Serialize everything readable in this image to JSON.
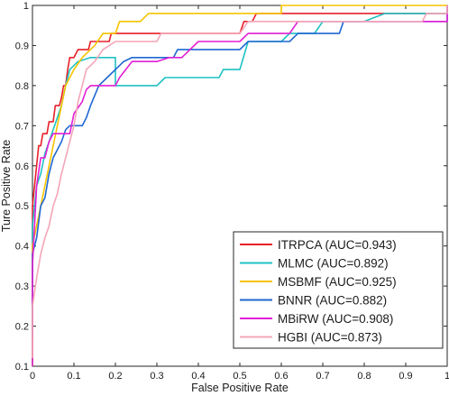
{
  "chart_data": {
    "type": "line",
    "title": "",
    "xlabel": "False Positive Rate",
    "ylabel": "Ture Positive Rate",
    "xlim": [
      0,
      1
    ],
    "ylim": [
      0.1,
      1
    ],
    "grid": false,
    "legend_position": "bottom-right",
    "x_ticks": [
      "0",
      "0.1",
      "0.2",
      "0.3",
      "0.4",
      "0.5",
      "0.6",
      "0.7",
      "0.8",
      "0.9",
      "1"
    ],
    "y_ticks": [
      "0.1",
      "0.2",
      "0.3",
      "0.4",
      "0.5",
      "0.6",
      "0.7",
      "0.8",
      "0.9",
      "1"
    ],
    "series": [
      {
        "name": "ITRPCA (AUC=0.943)",
        "color": "#e8202a",
        "points": [
          [
            0,
            0.1
          ],
          [
            0,
            0.5
          ],
          [
            0.005,
            0.55
          ],
          [
            0.01,
            0.6
          ],
          [
            0.015,
            0.65
          ],
          [
            0.02,
            0.65
          ],
          [
            0.025,
            0.68
          ],
          [
            0.035,
            0.68
          ],
          [
            0.04,
            0.71
          ],
          [
            0.05,
            0.71
          ],
          [
            0.055,
            0.75
          ],
          [
            0.065,
            0.75
          ],
          [
            0.07,
            0.77
          ],
          [
            0.075,
            0.8
          ],
          [
            0.08,
            0.8
          ],
          [
            0.085,
            0.84
          ],
          [
            0.09,
            0.87
          ],
          [
            0.1,
            0.87
          ],
          [
            0.11,
            0.89
          ],
          [
            0.135,
            0.89
          ],
          [
            0.14,
            0.91
          ],
          [
            0.185,
            0.91
          ],
          [
            0.19,
            0.93
          ],
          [
            0.5,
            0.93
          ],
          [
            0.51,
            0.96
          ],
          [
            0.53,
            0.96
          ],
          [
            0.54,
            0.98
          ],
          [
            1,
            0.98
          ],
          [
            1,
            1
          ]
        ]
      },
      {
        "name": "MLMC (AUC=0.892)",
        "color": "#1fc1c3",
        "points": [
          [
            0,
            0.1
          ],
          [
            0,
            0.45
          ],
          [
            0.01,
            0.55
          ],
          [
            0.02,
            0.58
          ],
          [
            0.03,
            0.63
          ],
          [
            0.04,
            0.66
          ],
          [
            0.05,
            0.69
          ],
          [
            0.06,
            0.72
          ],
          [
            0.07,
            0.75
          ],
          [
            0.08,
            0.8
          ],
          [
            0.09,
            0.84
          ],
          [
            0.11,
            0.86
          ],
          [
            0.14,
            0.87
          ],
          [
            0.2,
            0.87
          ],
          [
            0.2,
            0.8
          ],
          [
            0.3,
            0.8
          ],
          [
            0.32,
            0.82
          ],
          [
            0.4,
            0.82
          ],
          [
            0.45,
            0.82
          ],
          [
            0.46,
            0.84
          ],
          [
            0.5,
            0.84
          ],
          [
            0.52,
            0.91
          ],
          [
            0.6,
            0.91
          ],
          [
            0.62,
            0.93
          ],
          [
            0.68,
            0.93
          ],
          [
            0.7,
            0.96
          ],
          [
            0.8,
            0.96
          ],
          [
            0.85,
            0.98
          ],
          [
            1,
            0.98
          ],
          [
            1,
            1
          ]
        ]
      },
      {
        "name": "MSBMF (AUC=0.925)",
        "color": "#f5c400",
        "points": [
          [
            0,
            0.1
          ],
          [
            0,
            0.4
          ],
          [
            0.01,
            0.45
          ],
          [
            0.02,
            0.5
          ],
          [
            0.03,
            0.55
          ],
          [
            0.04,
            0.6
          ],
          [
            0.05,
            0.65
          ],
          [
            0.06,
            0.7
          ],
          [
            0.07,
            0.75
          ],
          [
            0.08,
            0.8
          ],
          [
            0.09,
            0.82
          ],
          [
            0.1,
            0.84
          ],
          [
            0.12,
            0.87
          ],
          [
            0.15,
            0.9
          ],
          [
            0.17,
            0.93
          ],
          [
            0.2,
            0.93
          ],
          [
            0.21,
            0.96
          ],
          [
            0.26,
            0.96
          ],
          [
            0.28,
            0.98
          ],
          [
            0.6,
            0.98
          ],
          [
            0.6,
            1
          ],
          [
            1,
            1
          ]
        ]
      },
      {
        "name": "BNNR (AUC=0.882)",
        "color": "#1f67d2",
        "points": [
          [
            0,
            0.17
          ],
          [
            0,
            0.38
          ],
          [
            0.01,
            0.42
          ],
          [
            0.02,
            0.5
          ],
          [
            0.03,
            0.52
          ],
          [
            0.04,
            0.58
          ],
          [
            0.05,
            0.62
          ],
          [
            0.06,
            0.64
          ],
          [
            0.07,
            0.66
          ],
          [
            0.08,
            0.69
          ],
          [
            0.09,
            0.7
          ],
          [
            0.12,
            0.7
          ],
          [
            0.13,
            0.72
          ],
          [
            0.14,
            0.75
          ],
          [
            0.16,
            0.8
          ],
          [
            0.18,
            0.82
          ],
          [
            0.2,
            0.84
          ],
          [
            0.22,
            0.86
          ],
          [
            0.24,
            0.87
          ],
          [
            0.34,
            0.87
          ],
          [
            0.35,
            0.89
          ],
          [
            0.5,
            0.89
          ],
          [
            0.52,
            0.91
          ],
          [
            0.62,
            0.91
          ],
          [
            0.64,
            0.93
          ],
          [
            0.74,
            0.93
          ],
          [
            0.75,
            0.96
          ],
          [
            1,
            0.96
          ],
          [
            1,
            1
          ]
        ]
      },
      {
        "name": "MBiRW (AUC=0.908)",
        "color": "#e11fd6",
        "points": [
          [
            0,
            0.1
          ],
          [
            0,
            0.35
          ],
          [
            0.01,
            0.55
          ],
          [
            0.02,
            0.62
          ],
          [
            0.03,
            0.62
          ],
          [
            0.04,
            0.66
          ],
          [
            0.05,
            0.68
          ],
          [
            0.09,
            0.68
          ],
          [
            0.1,
            0.73
          ],
          [
            0.12,
            0.76
          ],
          [
            0.13,
            0.79
          ],
          [
            0.14,
            0.8
          ],
          [
            0.2,
            0.8
          ],
          [
            0.21,
            0.82
          ],
          [
            0.24,
            0.86
          ],
          [
            0.3,
            0.86
          ],
          [
            0.33,
            0.87
          ],
          [
            0.36,
            0.87
          ],
          [
            0.38,
            0.89
          ],
          [
            0.4,
            0.91
          ],
          [
            0.5,
            0.91
          ],
          [
            0.52,
            0.93
          ],
          [
            0.62,
            0.93
          ],
          [
            0.64,
            0.96
          ],
          [
            1,
            0.96
          ],
          [
            1,
            1
          ]
        ]
      },
      {
        "name": "HGBI (AUC=0.873)",
        "color": "#f4a6b8",
        "points": [
          [
            0,
            0.12
          ],
          [
            0,
            0.25
          ],
          [
            0.01,
            0.32
          ],
          [
            0.02,
            0.38
          ],
          [
            0.03,
            0.42
          ],
          [
            0.04,
            0.45
          ],
          [
            0.05,
            0.5
          ],
          [
            0.06,
            0.53
          ],
          [
            0.07,
            0.58
          ],
          [
            0.08,
            0.62
          ],
          [
            0.09,
            0.66
          ],
          [
            0.1,
            0.7
          ],
          [
            0.11,
            0.76
          ],
          [
            0.12,
            0.8
          ],
          [
            0.13,
            0.84
          ],
          [
            0.15,
            0.86
          ],
          [
            0.17,
            0.89
          ],
          [
            0.2,
            0.91
          ],
          [
            0.3,
            0.91
          ],
          [
            0.31,
            0.93
          ],
          [
            0.4,
            0.93
          ],
          [
            0.5,
            0.93
          ],
          [
            0.52,
            0.96
          ],
          [
            0.94,
            0.96
          ],
          [
            0.95,
            0.98
          ],
          [
            1,
            0.98
          ],
          [
            1,
            1
          ]
        ]
      }
    ]
  }
}
